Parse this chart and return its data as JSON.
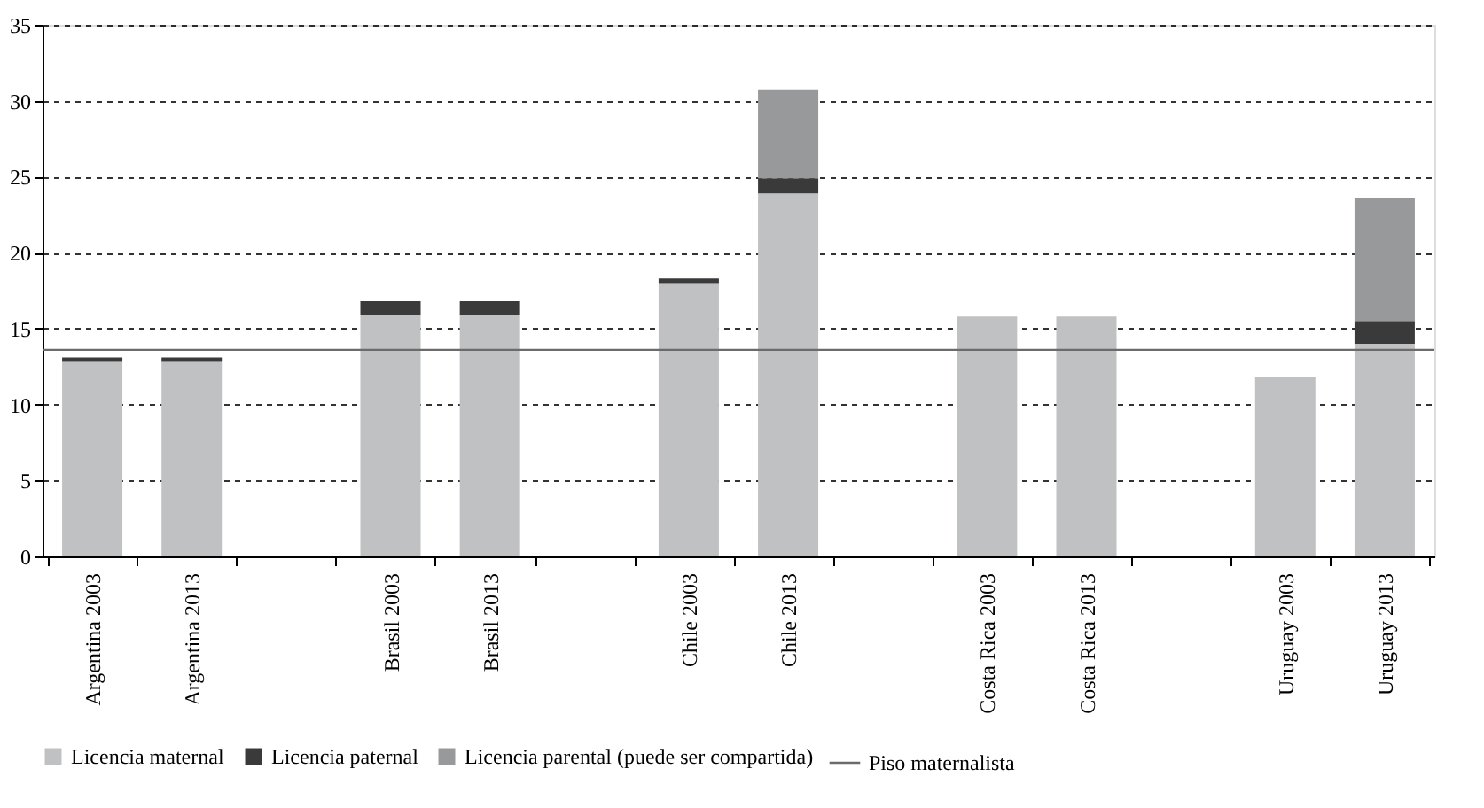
{
  "chart_data": {
    "type": "bar",
    "stacked": true,
    "categories": [
      "Argentina 2003",
      "Argentina 2013",
      null,
      "Brasil 2003",
      "Brasil 2013",
      null,
      "Chile 2003",
      "Chile 2013",
      null,
      "Costa Rica 2003",
      "Costa Rica 2013",
      null,
      "Uruguay 2003",
      "Uruguay 2013"
    ],
    "series": [
      {
        "name": "Licencia maternal",
        "color": "#c0c1c2",
        "values": [
          12.8,
          12.8,
          null,
          15.9,
          15.9,
          null,
          18.0,
          23.9,
          null,
          15.8,
          15.8,
          null,
          11.8,
          14.0
        ]
      },
      {
        "name": "Licencia paternal",
        "color": "#3a3a3a",
        "values": [
          0.3,
          0.3,
          null,
          0.9,
          0.9,
          null,
          0.3,
          1.0,
          null,
          null,
          null,
          null,
          null,
          1.5
        ]
      },
      {
        "name": "Licencia parental (puede ser compartida)",
        "color": "#98999b",
        "values": [
          null,
          null,
          null,
          null,
          null,
          null,
          null,
          5.8,
          null,
          null,
          null,
          null,
          null,
          8.1
        ]
      }
    ],
    "ref_lines": [
      {
        "axis": "y",
        "value": 13.6,
        "label": "Piso maternalista",
        "color": "#6b6b6b",
        "line_style": "solid"
      }
    ],
    "ylim": [
      0,
      35
    ],
    "yticks": [
      0,
      5,
      10,
      15,
      20,
      25,
      30,
      35
    ],
    "grid": "y",
    "legend": "bottom"
  }
}
